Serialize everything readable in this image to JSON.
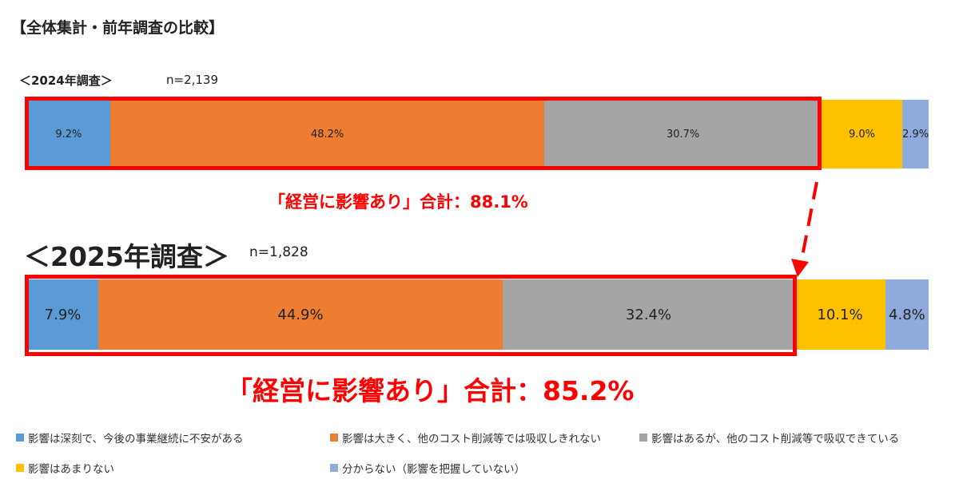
{
  "title": "【全体集計・前年調査の比較】",
  "chart_data": {
    "type": "bar",
    "orientation": "horizontal-stacked-100",
    "categories": [
      "影響は深刻で、今後の事業継続に不安がある",
      "影響は大きく、他のコスト削減等では吸収しきれない",
      "影響はあるが、他のコスト削減等で吸収できている",
      "影響はあまりない",
      "分からない（影響を把握していない）"
    ],
    "colors": [
      "#5b9bd5",
      "#ed7d31",
      "#a5a5a5",
      "#ffc000",
      "#8faadc"
    ],
    "series": [
      {
        "name": "＜2024年調査＞",
        "n": "n=2,139",
        "values": [
          9.2,
          48.2,
          30.7,
          9.0,
          2.9
        ],
        "labels": [
          "9.2%",
          "48.2%",
          "30.7%",
          "9.0%",
          "2.9%"
        ],
        "highlight_total": "「経営に影響あり」合計：88.1%"
      },
      {
        "name": "＜2025年調査＞",
        "n": "n=1,828",
        "values": [
          7.9,
          44.9,
          32.4,
          10.1,
          4.8
        ],
        "labels": [
          "7.9%",
          "44.9%",
          "32.4%",
          "10.1%",
          "4.8%"
        ],
        "highlight_total": "「経営に影響あり」合計：85.2%"
      }
    ],
    "legend_placement": "bottom",
    "highlight_color": "#ff0000"
  }
}
